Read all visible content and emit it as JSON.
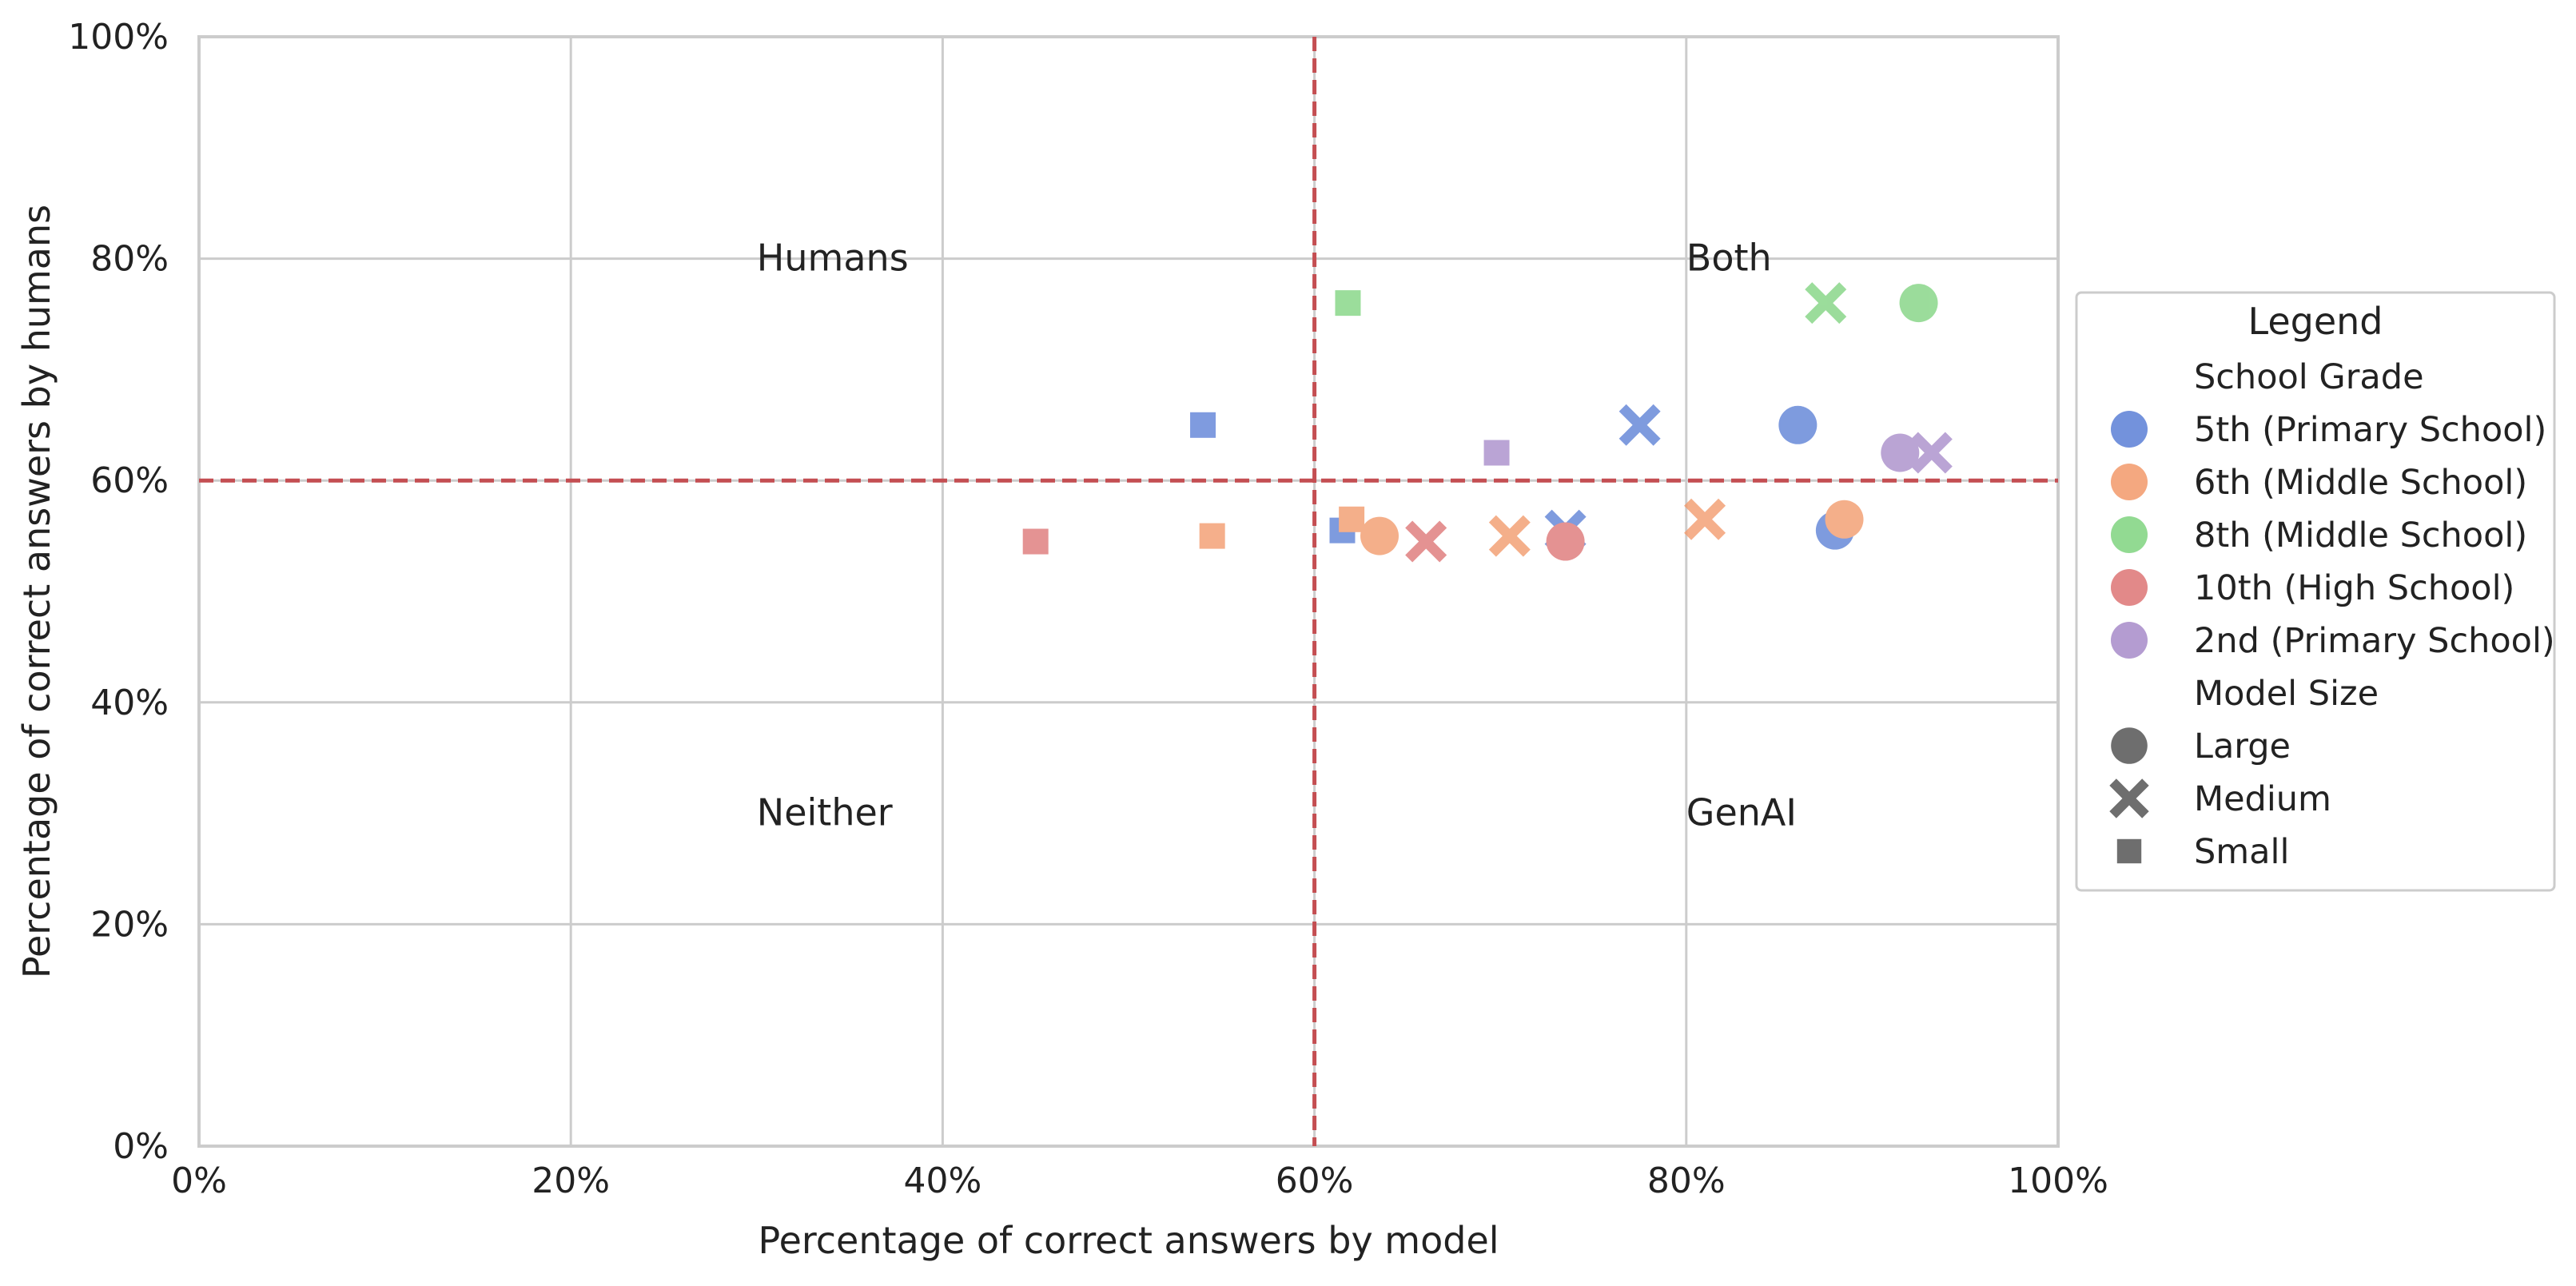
{
  "chart_data": {
    "type": "scatter",
    "xlabel": "Percentage of correct answers by model",
    "ylabel": "Percentage of correct answers by humans",
    "xlim": [
      0,
      100
    ],
    "ylim": [
      0,
      100
    ],
    "x_ticks": [
      0,
      20,
      40,
      60,
      80,
      100
    ],
    "y_ticks": [
      0,
      20,
      40,
      60,
      80,
      100
    ],
    "x_tick_labels": [
      "0%",
      "20%",
      "40%",
      "60%",
      "80%",
      "100%"
    ],
    "y_tick_labels": [
      "0%",
      "20%",
      "40%",
      "60%",
      "80%",
      "100%"
    ],
    "grid": true,
    "threshold_lines": {
      "x": 60,
      "y": 60,
      "color": "#c44e52",
      "style": "dashed"
    },
    "quadrant_labels": [
      {
        "text": "Humans",
        "x": 30,
        "y": 80
      },
      {
        "text": "Both",
        "x": 80,
        "y": 80
      },
      {
        "text": "Neither",
        "x": 30,
        "y": 30
      },
      {
        "text": "GenAI",
        "x": 80,
        "y": 30
      }
    ],
    "legend": {
      "title": "Legend",
      "placement": "right-outside",
      "hue_title": "School Grade",
      "style_title": "Model Size",
      "grades": [
        {
          "name": "5th (Primary School)",
          "color": "#5b7fd6"
        },
        {
          "name": "6th (Middle School)",
          "color": "#f2996a"
        },
        {
          "name": "8th (Middle School)",
          "color": "#7fd37f"
        },
        {
          "name": "10th (High School)",
          "color": "#dd7474"
        },
        {
          "name": "2nd (Primary School)",
          "color": "#a78bc9"
        }
      ],
      "sizes": [
        {
          "name": "Large",
          "marker": "circle"
        },
        {
          "name": "Medium",
          "marker": "x"
        },
        {
          "name": "Small",
          "marker": "square"
        }
      ],
      "neutral_color": "#6e6e6e"
    },
    "points": [
      {
        "grade": "5th (Primary School)",
        "size": "Small",
        "x": 54,
        "y": 65
      },
      {
        "grade": "5th (Primary School)",
        "size": "Small",
        "x": 61.5,
        "y": 55.5
      },
      {
        "grade": "5th (Primary School)",
        "size": "Medium",
        "x": 77.5,
        "y": 65
      },
      {
        "grade": "5th (Primary School)",
        "size": "Medium",
        "x": 73.5,
        "y": 55.5
      },
      {
        "grade": "5th (Primary School)",
        "size": "Large",
        "x": 86,
        "y": 65
      },
      {
        "grade": "5th (Primary School)",
        "size": "Large",
        "x": 88,
        "y": 55.5
      },
      {
        "grade": "6th (Middle School)",
        "size": "Small",
        "x": 54.5,
        "y": 55
      },
      {
        "grade": "6th (Middle School)",
        "size": "Small",
        "x": 62,
        "y": 56.5
      },
      {
        "grade": "6th (Middle School)",
        "size": "Large",
        "x": 63.5,
        "y": 55
      },
      {
        "grade": "6th (Middle School)",
        "size": "Medium",
        "x": 70.5,
        "y": 55
      },
      {
        "grade": "6th (Middle School)",
        "size": "Medium",
        "x": 81,
        "y": 56.5
      },
      {
        "grade": "6th (Middle School)",
        "size": "Large",
        "x": 88.5,
        "y": 56.5
      },
      {
        "grade": "8th (Middle School)",
        "size": "Small",
        "x": 61.8,
        "y": 76
      },
      {
        "grade": "8th (Middle School)",
        "size": "Medium",
        "x": 87.5,
        "y": 76
      },
      {
        "grade": "8th (Middle School)",
        "size": "Large",
        "x": 92.5,
        "y": 76
      },
      {
        "grade": "10th (High School)",
        "size": "Small",
        "x": 45,
        "y": 54.5
      },
      {
        "grade": "10th (High School)",
        "size": "Medium",
        "x": 66,
        "y": 54.5
      },
      {
        "grade": "10th (High School)",
        "size": "Large",
        "x": 73.5,
        "y": 54.5
      },
      {
        "grade": "2nd (Primary School)",
        "size": "Small",
        "x": 69.8,
        "y": 62.5
      },
      {
        "grade": "2nd (Primary School)",
        "size": "Large",
        "x": 91.5,
        "y": 62.5
      },
      {
        "grade": "2nd (Primary School)",
        "size": "Medium",
        "x": 93.2,
        "y": 62.5
      }
    ]
  }
}
